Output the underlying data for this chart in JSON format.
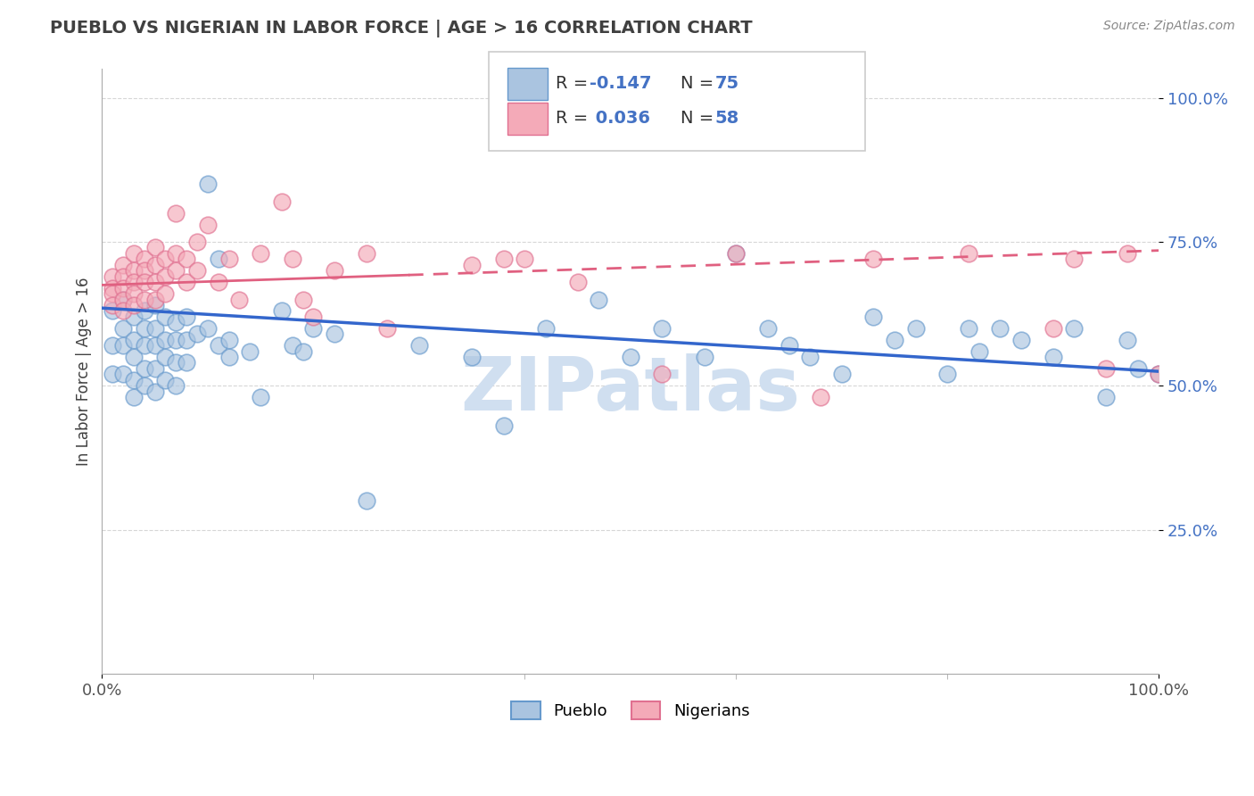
{
  "title": "PUEBLO VS NIGERIAN IN LABOR FORCE | AGE > 16 CORRELATION CHART",
  "source_text": "Source: ZipAtlas.com",
  "ylabel": "In Labor Force | Age > 16",
  "pueblo_color_fill": "#aac4e0",
  "pueblo_color_edge": "#6699cc",
  "nigerian_color_fill": "#f4aab8",
  "nigerian_color_edge": "#e07090",
  "pueblo_line_color": "#3366cc",
  "nigerian_line_color": "#e06080",
  "pueblo_R": -0.147,
  "nigerian_R": 0.036,
  "pueblo_N": 75,
  "nigerian_N": 58,
  "x_min": 0.0,
  "x_max": 1.0,
  "y_min": 0.0,
  "y_max": 1.05,
  "background_color": "#ffffff",
  "grid_color": "#cccccc",
  "title_color": "#404040",
  "watermark_color": "#d0dff0",
  "ytick_color": "#4472c4",
  "legend_border_color": "#cccccc",
  "pueblo_scatter_x": [
    0.01,
    0.01,
    0.01,
    0.02,
    0.02,
    0.02,
    0.02,
    0.03,
    0.03,
    0.03,
    0.03,
    0.03,
    0.04,
    0.04,
    0.04,
    0.04,
    0.04,
    0.05,
    0.05,
    0.05,
    0.05,
    0.05,
    0.06,
    0.06,
    0.06,
    0.06,
    0.07,
    0.07,
    0.07,
    0.07,
    0.08,
    0.08,
    0.08,
    0.09,
    0.1,
    0.1,
    0.11,
    0.11,
    0.12,
    0.12,
    0.14,
    0.15,
    0.17,
    0.18,
    0.19,
    0.2,
    0.22,
    0.25,
    0.3,
    0.35,
    0.38,
    0.42,
    0.47,
    0.5,
    0.53,
    0.57,
    0.6,
    0.63,
    0.65,
    0.67,
    0.7,
    0.73,
    0.75,
    0.77,
    0.8,
    0.82,
    0.83,
    0.85,
    0.87,
    0.9,
    0.92,
    0.95,
    0.97,
    0.98,
    1.0
  ],
  "pueblo_scatter_y": [
    0.63,
    0.57,
    0.52,
    0.65,
    0.6,
    0.57,
    0.52,
    0.62,
    0.58,
    0.55,
    0.51,
    0.48,
    0.63,
    0.6,
    0.57,
    0.53,
    0.5,
    0.64,
    0.6,
    0.57,
    0.53,
    0.49,
    0.62,
    0.58,
    0.55,
    0.51,
    0.61,
    0.58,
    0.54,
    0.5,
    0.62,
    0.58,
    0.54,
    0.59,
    0.6,
    0.85,
    0.57,
    0.72,
    0.58,
    0.55,
    0.56,
    0.48,
    0.63,
    0.57,
    0.56,
    0.6,
    0.59,
    0.3,
    0.57,
    0.55,
    0.43,
    0.6,
    0.65,
    0.55,
    0.6,
    0.55,
    0.73,
    0.6,
    0.57,
    0.55,
    0.52,
    0.62,
    0.58,
    0.6,
    0.52,
    0.6,
    0.56,
    0.6,
    0.58,
    0.55,
    0.6,
    0.48,
    0.58,
    0.53,
    0.52
  ],
  "nigerian_scatter_x": [
    0.01,
    0.01,
    0.01,
    0.01,
    0.02,
    0.02,
    0.02,
    0.02,
    0.02,
    0.03,
    0.03,
    0.03,
    0.03,
    0.03,
    0.04,
    0.04,
    0.04,
    0.04,
    0.05,
    0.05,
    0.05,
    0.05,
    0.06,
    0.06,
    0.06,
    0.07,
    0.07,
    0.07,
    0.08,
    0.08,
    0.09,
    0.09,
    0.1,
    0.11,
    0.12,
    0.13,
    0.15,
    0.17,
    0.18,
    0.19,
    0.2,
    0.22,
    0.25,
    0.27,
    0.35,
    0.38,
    0.4,
    0.45,
    0.53,
    0.6,
    0.68,
    0.73,
    0.82,
    0.9,
    0.92,
    0.95,
    0.97,
    1.0
  ],
  "nigerian_scatter_y": [
    0.69,
    0.67,
    0.66,
    0.64,
    0.71,
    0.69,
    0.67,
    0.65,
    0.63,
    0.73,
    0.7,
    0.68,
    0.66,
    0.64,
    0.72,
    0.7,
    0.68,
    0.65,
    0.74,
    0.71,
    0.68,
    0.65,
    0.72,
    0.69,
    0.66,
    0.8,
    0.73,
    0.7,
    0.72,
    0.68,
    0.75,
    0.7,
    0.78,
    0.68,
    0.72,
    0.65,
    0.73,
    0.82,
    0.72,
    0.65,
    0.62,
    0.7,
    0.73,
    0.6,
    0.71,
    0.72,
    0.72,
    0.68,
    0.52,
    0.73,
    0.48,
    0.72,
    0.73,
    0.6,
    0.72,
    0.53,
    0.73,
    0.52
  ],
  "pueblo_line_x0": 0.0,
  "pueblo_line_x1": 1.0,
  "pueblo_line_y0": 0.635,
  "pueblo_line_y1": 0.525,
  "nigerian_line_solid_x0": 0.0,
  "nigerian_line_solid_x1": 0.29,
  "nigerian_line_dashed_x0": 0.29,
  "nigerian_line_dashed_x1": 1.0,
  "nigerian_line_y0": 0.675,
  "nigerian_line_y1": 0.735
}
